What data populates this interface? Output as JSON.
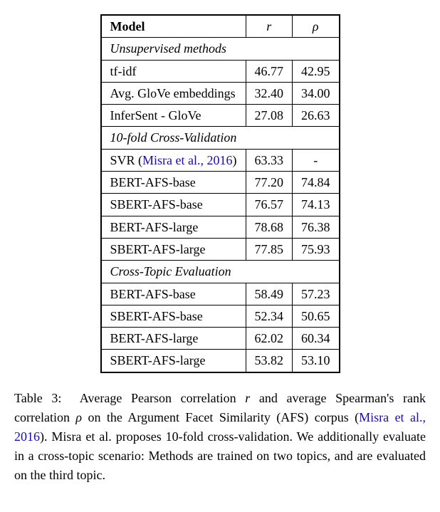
{
  "table": {
    "headers": {
      "model": "Model",
      "r": "r",
      "rho": "ρ"
    },
    "sections": {
      "unsupervised": {
        "title": "Unsupervised methods",
        "rows": [
          {
            "model": "tf-idf",
            "r": "46.77",
            "rho": "42.95"
          },
          {
            "model": "Avg. GloVe embeddings",
            "r": "32.40",
            "rho": "34.00"
          },
          {
            "model": "InferSent - GloVe",
            "r": "27.08",
            "rho": "26.63"
          }
        ]
      },
      "crossval": {
        "title": "10-fold Cross-Validation",
        "rows": [
          {
            "model_prefix": "SVR (",
            "cite": "Misra et al., 2016",
            "model_suffix": ")",
            "r": "63.33",
            "rho": "-"
          },
          {
            "model": "BERT-AFS-base",
            "r": "77.20",
            "rho": "74.84"
          },
          {
            "model": "SBERT-AFS-base",
            "r": "76.57",
            "rho": "74.13"
          },
          {
            "model": "BERT-AFS-large",
            "r": "78.68",
            "rho": "76.38"
          },
          {
            "model": "SBERT-AFS-large",
            "r": "77.85",
            "rho": "75.93"
          }
        ]
      },
      "crosstopic": {
        "title": "Cross-Topic Evaluation",
        "rows": [
          {
            "model": "BERT-AFS-base",
            "r": "58.49",
            "rho": "57.23"
          },
          {
            "model": "SBERT-AFS-base",
            "r": "52.34",
            "rho": "50.65"
          },
          {
            "model": "BERT-AFS-large",
            "r": "62.02",
            "rho": "60.34"
          },
          {
            "model": "SBERT-AFS-large",
            "r": "53.82",
            "rho": "53.10"
          }
        ]
      }
    }
  },
  "caption": {
    "label": "Table 3:",
    "part1": "Average Pearson correlation ",
    "sym_r": "r",
    "part2": " and average Spearman's rank correlation ",
    "sym_rho": "ρ",
    "part3": " on the Argument Facet Similarity (AFS) corpus (",
    "cite": "Misra et al., 2016",
    "part4": "). Misra et al. proposes 10-fold cross-validation. We additionally evaluate in a cross-topic scenario: Methods are trained on two topics, and are evaluated on the third topic."
  },
  "colors": {
    "cite": "#1a0dab",
    "text": "#000000",
    "border": "#000000",
    "background": "#ffffff"
  },
  "fonts": {
    "family": "Times New Roman",
    "body_size_pt": 13,
    "line_height": 1.5
  }
}
